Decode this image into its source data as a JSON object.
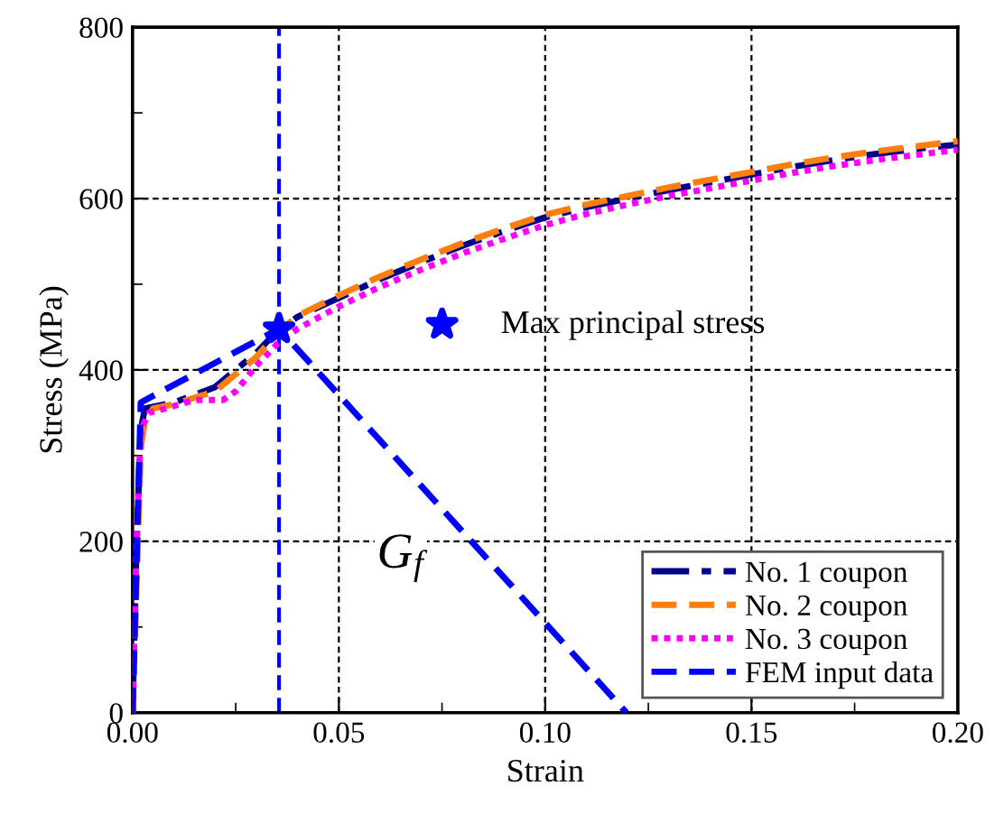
{
  "chart_data": {
    "type": "line",
    "xlabel": "Strain",
    "ylabel": "Stress (MPa)",
    "xlim": [
      0,
      0.2
    ],
    "ylim": [
      0,
      800
    ],
    "xticks": [
      {
        "value": 0,
        "label": "0.00"
      },
      {
        "value": 0.025,
        "label": null
      },
      {
        "value": 0.05,
        "label": "0.05"
      },
      {
        "value": 0.075,
        "label": null
      },
      {
        "value": 0.1,
        "label": "0.10"
      },
      {
        "value": 0.125,
        "label": null
      },
      {
        "value": 0.15,
        "label": "0.15"
      },
      {
        "value": 0.175,
        "label": null
      },
      {
        "value": 0.2,
        "label": "0.20"
      }
    ],
    "yticks": [
      0,
      {
        "value": 100,
        "label": null
      },
      200,
      {
        "value": 300,
        "label": null
      },
      400,
      {
        "value": 500,
        "label": null
      },
      600,
      {
        "value": 700,
        "label": null
      },
      800
    ],
    "grid": true,
    "legend": "bottom right",
    "series": [
      {
        "name": "No. 1 coupon",
        "color": "#00008b",
        "line_style": "dashdot",
        "x": [
          0,
          0.001,
          0.002,
          0.003,
          0.01,
          0.02,
          0.03,
          0.035,
          0.04,
          0.05,
          0.06,
          0.07,
          0.08,
          0.09,
          0.1,
          0.11,
          0.12,
          0.13,
          0.14,
          0.15,
          0.16,
          0.17,
          0.18,
          0.19,
          0.2
        ],
        "values": [
          0,
          200,
          330,
          355,
          362,
          380,
          420,
          445,
          462,
          484,
          506,
          526,
          545,
          562,
          578,
          590,
          600,
          610,
          619,
          628,
          637,
          645,
          652,
          658,
          663
        ]
      },
      {
        "name": "No. 2 coupon",
        "color": "#ff7f0e",
        "line_style": "dashed",
        "x": [
          0,
          0.002,
          0.003,
          0.005,
          0.01,
          0.02,
          0.03,
          0.035,
          0.04,
          0.05,
          0.06,
          0.07,
          0.08,
          0.09,
          0.1,
          0.11,
          0.12,
          0.13,
          0.14,
          0.15,
          0.16,
          0.17,
          0.18,
          0.19,
          0.2
        ],
        "values": [
          0,
          310,
          340,
          355,
          360,
          375,
          415,
          443,
          463,
          487,
          509,
          529,
          548,
          565,
          581,
          593,
          603,
          613,
          622,
          631,
          640,
          648,
          655,
          661,
          667
        ]
      },
      {
        "name": "No. 3 coupon",
        "color": "#ff00ff",
        "line_style": "dotted",
        "x": [
          0,
          0.001,
          0.002,
          0.004,
          0.008,
          0.015,
          0.022,
          0.025,
          0.03,
          0.035,
          0.04,
          0.05,
          0.06,
          0.07,
          0.08,
          0.09,
          0.1,
          0.11,
          0.12,
          0.13,
          0.14,
          0.15,
          0.16,
          0.17,
          0.18,
          0.19,
          0.2
        ],
        "values": [
          0,
          200,
          330,
          350,
          355,
          365,
          365,
          375,
          405,
          430,
          448,
          474,
          497,
          517,
          536,
          553,
          569,
          582,
          593,
          603,
          612,
          621,
          630,
          638,
          645,
          651,
          657
        ]
      },
      {
        "name": "FEM input data",
        "color": "#0000ff",
        "line_style": "dashed",
        "x": [
          0,
          0.002,
          0.0355,
          0.1197
        ],
        "values": [
          0,
          362,
          448,
          0
        ]
      },
      {
        "name": "Max principal stress",
        "type": "scatter",
        "marker": "star",
        "color": "#0000ff",
        "x": [
          0.0355
        ],
        "values": [
          448
        ]
      }
    ],
    "ref_lines": [
      {
        "axis": "x",
        "value": 0.0355,
        "color": "#0000ff",
        "line_style": "dashed"
      }
    ],
    "annotations": [
      {
        "text": "G$_{f}$",
        "x": 0.065,
        "y": 180
      }
    ]
  }
}
